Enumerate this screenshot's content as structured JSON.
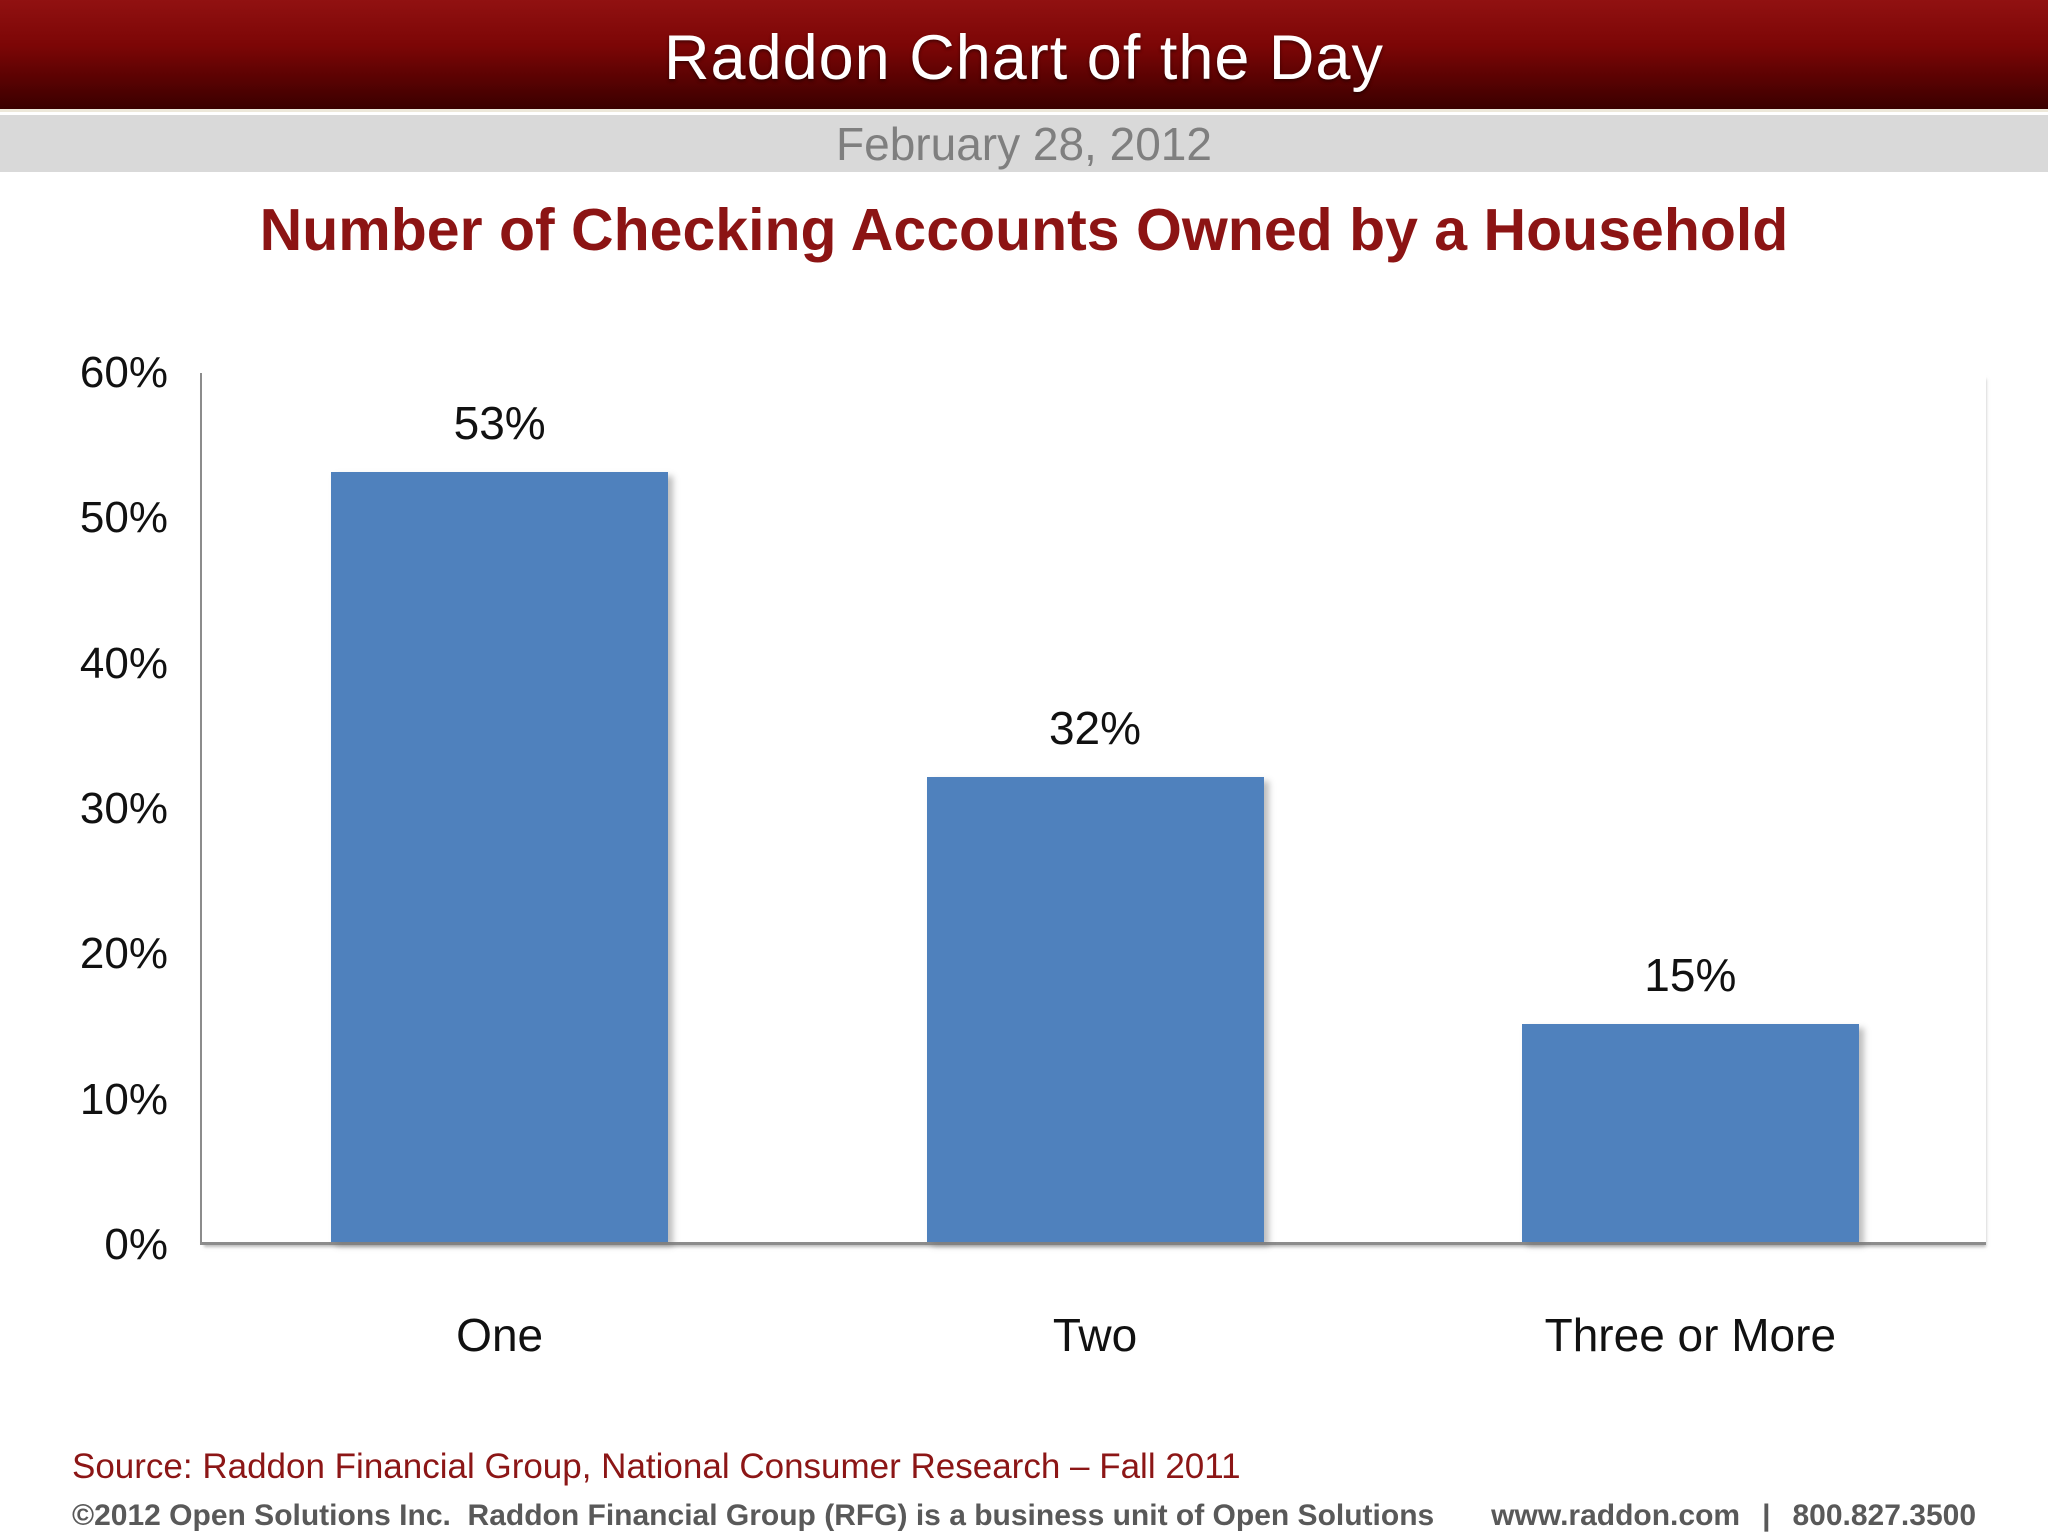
{
  "header": {
    "title": "Raddon Chart of the Day",
    "date": "February 28, 2012"
  },
  "chart_data": {
    "type": "bar",
    "title": "Number of Checking Accounts Owned by a Household",
    "categories": [
      "One",
      "Two",
      "Three or More"
    ],
    "values": [
      53,
      32,
      15
    ],
    "value_labels": [
      "53%",
      "32%",
      "15%"
    ],
    "yticks": [
      "60%",
      "50%",
      "40%",
      "30%",
      "20%",
      "10%",
      "0%"
    ],
    "ylim": [
      0,
      60
    ],
    "xlabel": "",
    "ylabel": "",
    "grid": false,
    "legend": false,
    "bar_color": "#4f81bd"
  },
  "footer": {
    "source": "Source: Raddon Financial Group, National Consumer Research – Fall 2011",
    "copyright": "©2012 Open Solutions Inc.  Raddon Financial Group (RFG) is a business unit of Open Solutions",
    "website": "www.raddon.com",
    "divider": "|",
    "phone": "800.827.3500"
  },
  "colors": {
    "banner_red_top": "#911111",
    "banner_red_bottom": "#3a0000",
    "date_strip_bg": "#d9d9d9",
    "date_text": "#7f7f7f",
    "title_red": "#8c1414",
    "axis_gray": "#8c8c8c",
    "bar_blue": "#4f81bd",
    "footer_gray": "#595959"
  }
}
